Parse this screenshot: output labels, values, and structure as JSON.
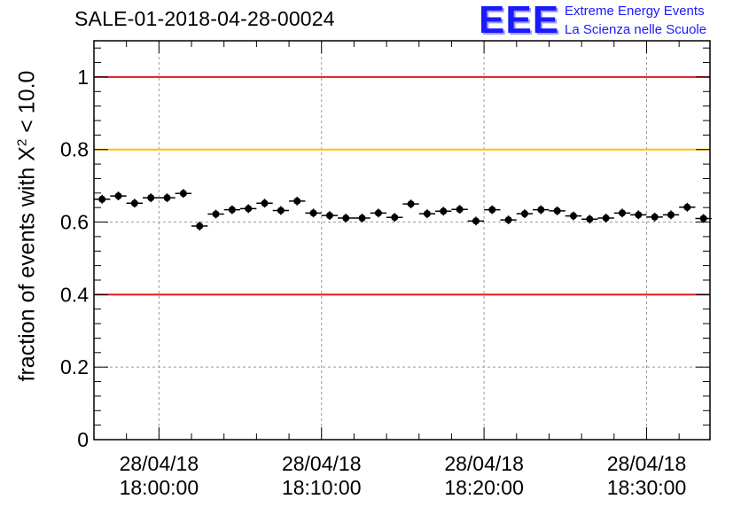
{
  "header": {
    "title": "SALE-01-2018-04-28-00024",
    "logo_text": "EEE",
    "logo_line1": "Extreme Energy Events",
    "logo_line2": "La Scienza nelle Scuole"
  },
  "chart_data": {
    "type": "scatter",
    "title": "SALE-01-2018-04-28-00024",
    "xlabel": "",
    "ylabel_prefix": "fraction of events with ",
    "ylabel_symbol": "X",
    "ylabel_exponent": "2",
    "ylabel_suffix": " < 10.0",
    "ylim": [
      0,
      1.1
    ],
    "xlim_minutes": [
      -4.0,
      33.9
    ],
    "grid": true,
    "y_ticks": [
      {
        "value": 0,
        "label": "0"
      },
      {
        "value": 0.2,
        "label": "0.2"
      },
      {
        "value": 0.4,
        "label": "0.4"
      },
      {
        "value": 0.6,
        "label": "0.6"
      },
      {
        "value": 0.8,
        "label": "0.8"
      },
      {
        "value": 1.0,
        "label": "1"
      }
    ],
    "x_ticks": [
      {
        "minute": 0,
        "date": "28/04/18",
        "time": "18:00:00"
      },
      {
        "minute": 10,
        "date": "28/04/18",
        "time": "18:10:00"
      },
      {
        "minute": 20,
        "date": "28/04/18",
        "time": "18:20:00"
      },
      {
        "minute": 30,
        "date": "28/04/18",
        "time": "18:30:00"
      }
    ],
    "reference_lines": [
      {
        "value": 1.0,
        "color": "#e31a1c"
      },
      {
        "value": 0.8,
        "color": "#ffc000"
      },
      {
        "value": 0.4,
        "color": "#e31a1c"
      }
    ],
    "bin_width_minutes": 1.0,
    "first_bin_center_minutes": -3.5,
    "values": [
      0.663,
      0.672,
      0.652,
      0.667,
      0.667,
      0.679,
      0.589,
      0.622,
      0.634,
      0.637,
      0.652,
      0.632,
      0.658,
      0.625,
      0.618,
      0.611,
      0.611,
      0.625,
      0.613,
      0.65,
      0.623,
      0.63,
      0.635,
      0.603,
      0.634,
      0.606,
      0.623,
      0.634,
      0.631,
      0.617,
      0.608,
      0.611,
      0.625,
      0.62,
      0.614,
      0.62,
      0.641,
      0.61
    ],
    "error": 0.012
  }
}
